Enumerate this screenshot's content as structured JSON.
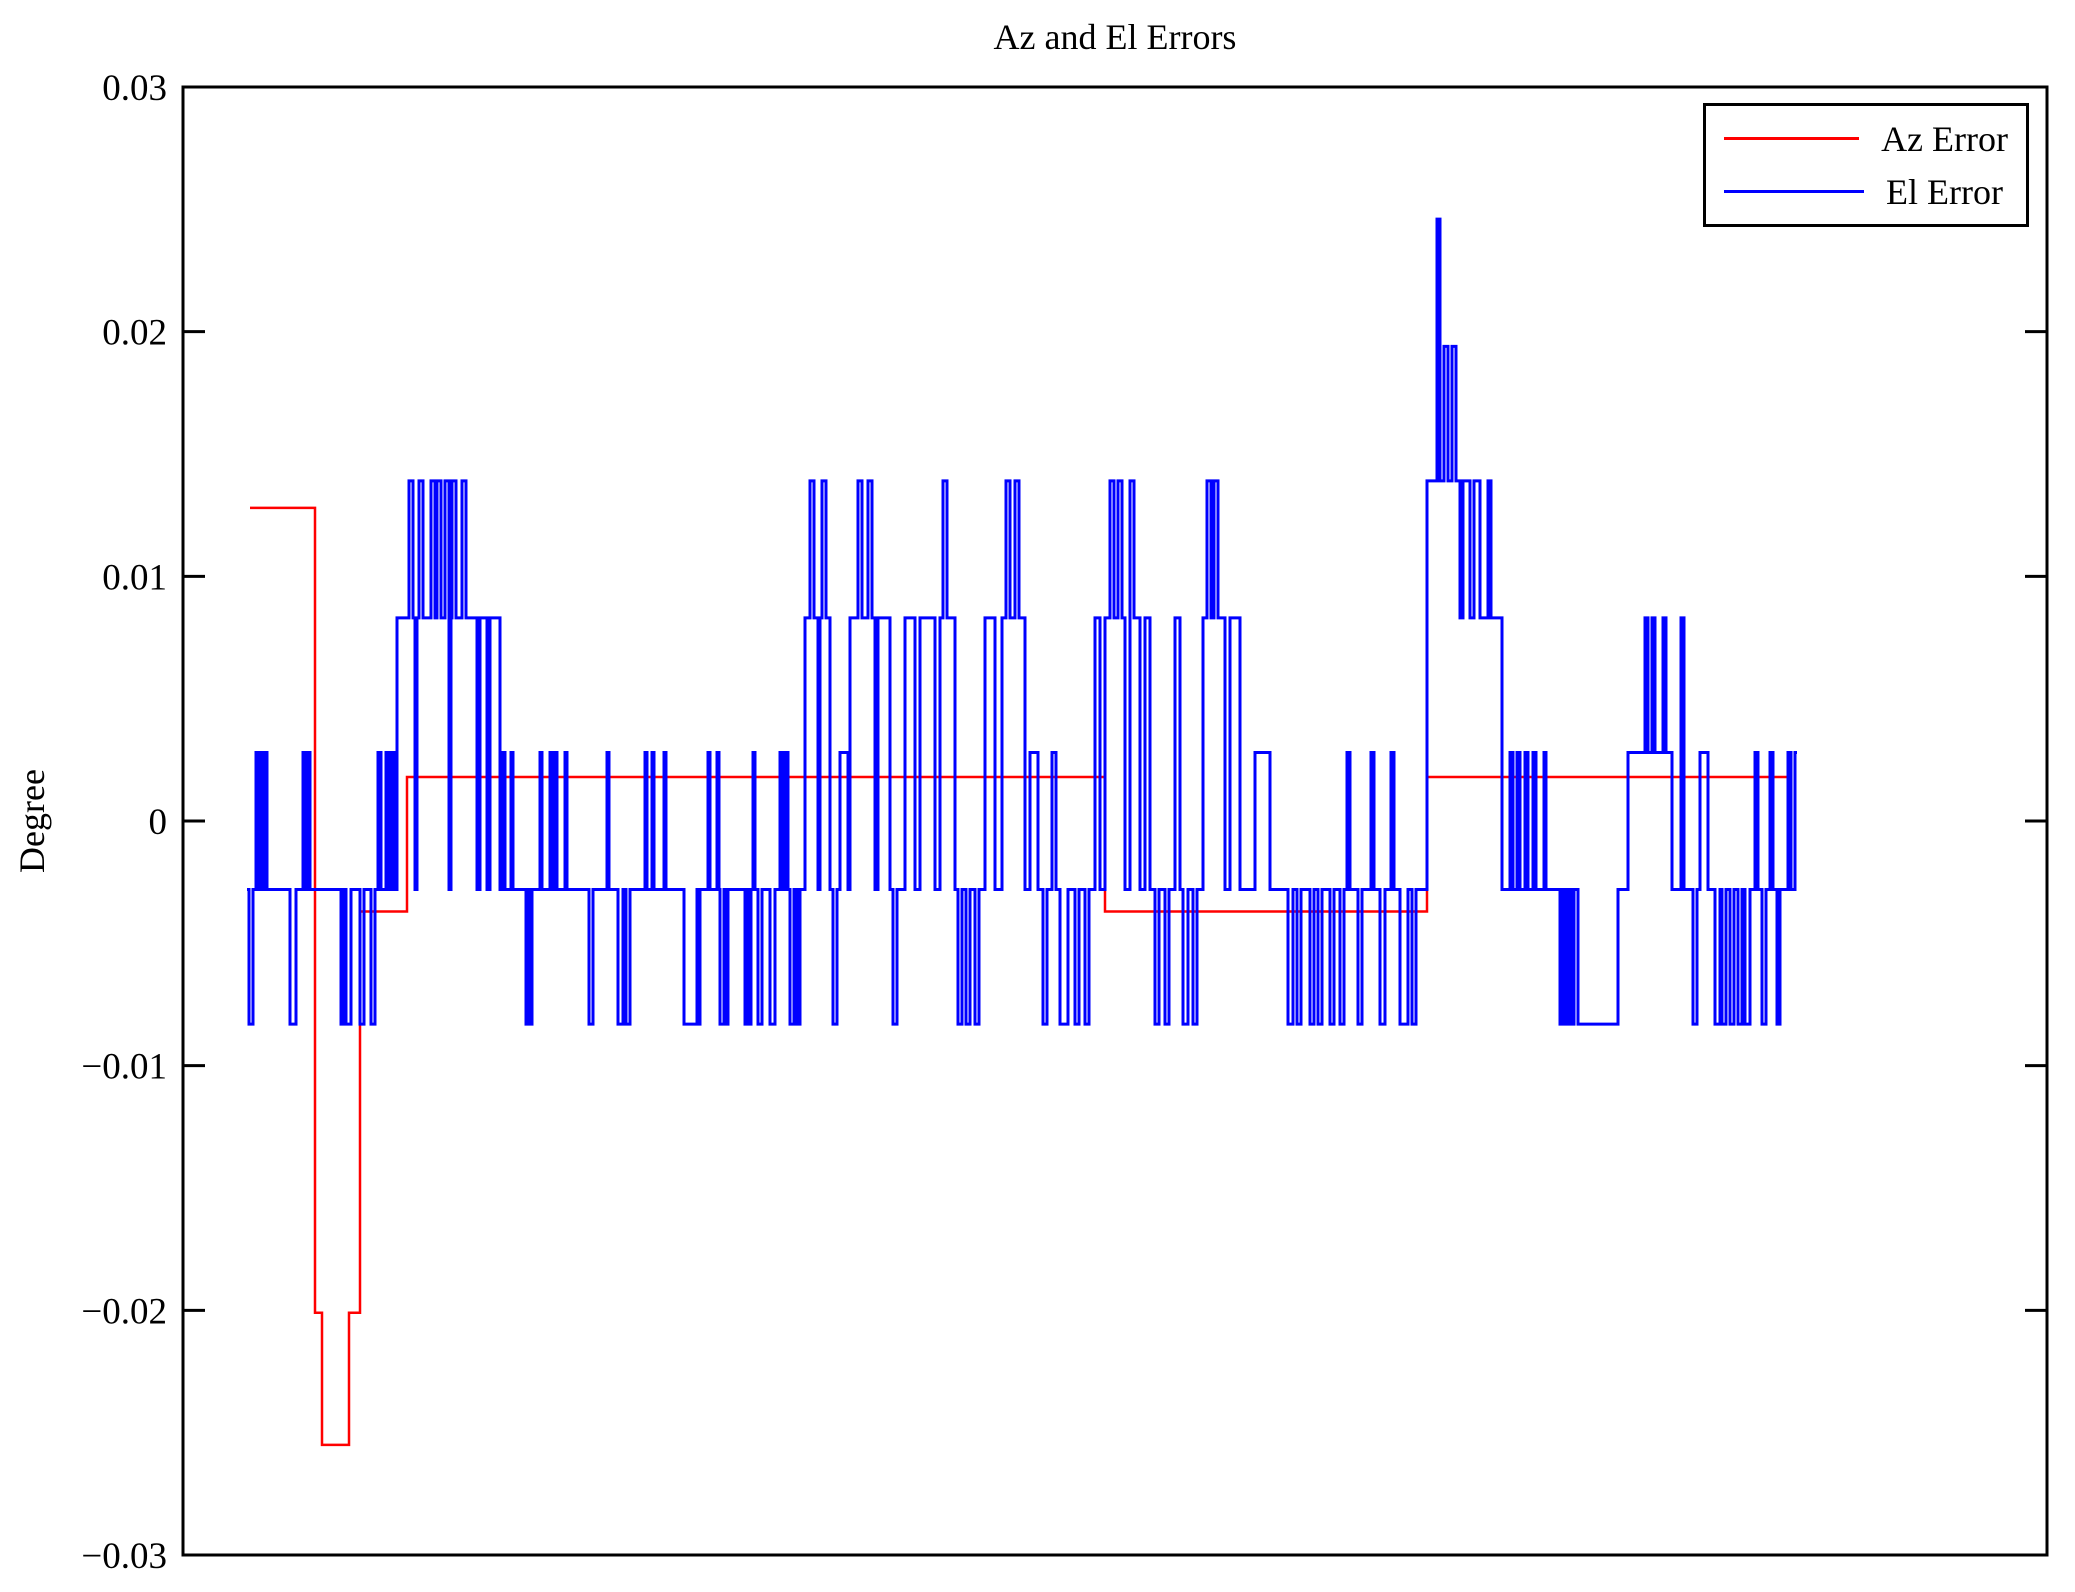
{
  "chart_data": {
    "type": "line",
    "subtype": "step",
    "title": "Az and El Errors",
    "xlabel": "",
    "ylabel": "Degree",
    "ylim": [
      -0.03,
      0.03
    ],
    "y_ticks": [
      0.03,
      0.02,
      0.01,
      0,
      -0.01,
      -0.02,
      -0.03
    ],
    "y_tick_labels": [
      "0.03",
      "0.02",
      "0.01",
      "0",
      "−0.01",
      "−0.02",
      "−0.03"
    ],
    "x_axis_labels_visible": false,
    "grid": false,
    "legend_position": "upper-right",
    "background_color": "#ffffff",
    "axis_color": "#000000",
    "legend": [
      {
        "label": "Az Error",
        "color": "#ff0000"
      },
      {
        "label": "El Error",
        "color": "#0000ff"
      }
    ],
    "series": [
      {
        "name": "Az Error",
        "color": "#ff0000",
        "width": 2.5,
        "steps": [
          [
            250,
            0.0128
          ],
          [
            315,
            -0.0201
          ],
          [
            322,
            -0.0255
          ],
          [
            349,
            -0.0201
          ],
          [
            360,
            -0.0037
          ],
          [
            407,
            0.0018
          ],
          [
            1105,
            -0.0037
          ],
          [
            1427,
            0.0018
          ],
          [
            1790,
            0.0018
          ]
        ]
      },
      {
        "name": "El Error",
        "color": "#0000ff",
        "width": 3,
        "steps": [
          [
            247,
            -0.0028
          ],
          [
            249,
            -0.0083
          ],
          [
            253,
            -0.0028
          ],
          [
            256,
            0.0028
          ],
          [
            258,
            -0.0028
          ],
          [
            260,
            0.0028
          ],
          [
            263,
            -0.0028
          ],
          [
            265,
            0.0028
          ],
          [
            267,
            -0.0028
          ],
          [
            290,
            -0.0083
          ],
          [
            296,
            -0.0028
          ],
          [
            303,
            0.0028
          ],
          [
            305,
            -0.0028
          ],
          [
            307,
            0.0028
          ],
          [
            310,
            -0.0028
          ],
          [
            341,
            -0.0083
          ],
          [
            344,
            -0.0028
          ],
          [
            346,
            -0.0083
          ],
          [
            351,
            -0.0028
          ],
          [
            360,
            -0.0083
          ],
          [
            364,
            -0.0028
          ],
          [
            371,
            -0.0083
          ],
          [
            375,
            -0.0028
          ],
          [
            378,
            0.0028
          ],
          [
            381,
            -0.0028
          ],
          [
            386,
            0.0028
          ],
          [
            389,
            -0.0028
          ],
          [
            392,
            0.0028
          ],
          [
            395,
            -0.0028
          ],
          [
            397,
            0.0083
          ],
          [
            409,
            0.0139
          ],
          [
            413,
            0.0083
          ],
          [
            415,
            -0.0028
          ],
          [
            417,
            0.0083
          ],
          [
            419,
            0.0139
          ],
          [
            423,
            0.0083
          ],
          [
            431,
            0.0139
          ],
          [
            435,
            0.0083
          ],
          [
            437,
            0.0139
          ],
          [
            441,
            0.0083
          ],
          [
            445,
            0.0139
          ],
          [
            449,
            -0.0028
          ],
          [
            451,
            0.0083
          ],
          [
            452,
            0.0139
          ],
          [
            456,
            0.0083
          ],
          [
            462,
            0.0139
          ],
          [
            466,
            0.0083
          ],
          [
            477,
            -0.0028
          ],
          [
            480,
            0.0083
          ],
          [
            487,
            -0.0028
          ],
          [
            490,
            0.0083
          ],
          [
            500,
            -0.0028
          ],
          [
            503,
            0.0028
          ],
          [
            505,
            -0.0028
          ],
          [
            511,
            0.0028
          ],
          [
            513,
            -0.0028
          ],
          [
            526,
            -0.0083
          ],
          [
            528,
            -0.0028
          ],
          [
            530,
            -0.0083
          ],
          [
            532,
            -0.0028
          ],
          [
            540,
            0.0028
          ],
          [
            542,
            -0.0028
          ],
          [
            550,
            0.0028
          ],
          [
            552,
            -0.0028
          ],
          [
            555,
            0.0028
          ],
          [
            557,
            -0.0028
          ],
          [
            565,
            0.0028
          ],
          [
            567,
            -0.0028
          ],
          [
            589,
            -0.0083
          ],
          [
            593,
            -0.0028
          ],
          [
            607,
            0.0028
          ],
          [
            609,
            -0.0028
          ],
          [
            618,
            -0.0083
          ],
          [
            623,
            -0.0028
          ],
          [
            626,
            -0.0083
          ],
          [
            630,
            -0.0028
          ],
          [
            645,
            0.0028
          ],
          [
            647,
            -0.0028
          ],
          [
            652,
            0.0028
          ],
          [
            654,
            -0.0028
          ],
          [
            664,
            0.0028
          ],
          [
            666,
            -0.0028
          ],
          [
            684,
            -0.0083
          ],
          [
            697,
            -0.0028
          ],
          [
            698,
            -0.0083
          ],
          [
            700,
            -0.0028
          ],
          [
            708,
            0.0028
          ],
          [
            710,
            -0.0028
          ],
          [
            717,
            0.0028
          ],
          [
            719,
            -0.0028
          ],
          [
            720,
            -0.0083
          ],
          [
            724,
            -0.0028
          ],
          [
            726,
            -0.0083
          ],
          [
            728,
            -0.0028
          ],
          [
            745,
            -0.0083
          ],
          [
            747,
            -0.0028
          ],
          [
            749,
            -0.0083
          ],
          [
            751,
            -0.0028
          ],
          [
            753,
            0.0028
          ],
          [
            755,
            -0.0028
          ],
          [
            758,
            -0.0083
          ],
          [
            762,
            -0.0028
          ],
          [
            770,
            -0.0083
          ],
          [
            775,
            -0.0028
          ],
          [
            780,
            0.0028
          ],
          [
            783,
            -0.0028
          ],
          [
            786,
            0.0028
          ],
          [
            788,
            -0.0028
          ],
          [
            790,
            -0.0083
          ],
          [
            794,
            -0.0028
          ],
          [
            797,
            -0.0083
          ],
          [
            800,
            -0.0028
          ],
          [
            805,
            0.0083
          ],
          [
            810,
            0.0139
          ],
          [
            814,
            0.0083
          ],
          [
            818,
            -0.0028
          ],
          [
            820,
            0.0083
          ],
          [
            822,
            0.0139
          ],
          [
            826,
            0.0083
          ],
          [
            830,
            -0.0028
          ],
          [
            833,
            -0.0083
          ],
          [
            837,
            -0.0028
          ],
          [
            840,
            0.0028
          ],
          [
            848,
            -0.0028
          ],
          [
            850,
            0.0083
          ],
          [
            858,
            0.0139
          ],
          [
            862,
            0.0083
          ],
          [
            868,
            0.0139
          ],
          [
            872,
            0.0083
          ],
          [
            875,
            -0.0028
          ],
          [
            878,
            0.0083
          ],
          [
            890,
            -0.0028
          ],
          [
            893,
            -0.0083
          ],
          [
            897,
            -0.0028
          ],
          [
            905,
            0.0083
          ],
          [
            915,
            -0.0028
          ],
          [
            920,
            0.0083
          ],
          [
            935,
            -0.0028
          ],
          [
            940,
            0.0083
          ],
          [
            943,
            0.0139
          ],
          [
            947,
            0.0083
          ],
          [
            955,
            -0.0028
          ],
          [
            958,
            -0.0083
          ],
          [
            962,
            -0.0028
          ],
          [
            966,
            -0.0083
          ],
          [
            970,
            -0.0028
          ],
          [
            975,
            -0.0083
          ],
          [
            979,
            -0.0028
          ],
          [
            985,
            0.0083
          ],
          [
            995,
            -0.0028
          ],
          [
            1002,
            0.0083
          ],
          [
            1006,
            0.0139
          ],
          [
            1010,
            0.0083
          ],
          [
            1015,
            0.0139
          ],
          [
            1019,
            0.0083
          ],
          [
            1025,
            -0.0028
          ],
          [
            1030,
            0.0028
          ],
          [
            1038,
            -0.0028
          ],
          [
            1043,
            -0.0083
          ],
          [
            1047,
            -0.0028
          ],
          [
            1052,
            0.0028
          ],
          [
            1056,
            -0.0028
          ],
          [
            1060,
            -0.0083
          ],
          [
            1068,
            -0.0028
          ],
          [
            1075,
            -0.0083
          ],
          [
            1079,
            -0.0028
          ],
          [
            1085,
            -0.0083
          ],
          [
            1089,
            -0.0028
          ],
          [
            1095,
            0.0083
          ],
          [
            1100,
            -0.0028
          ],
          [
            1105,
            0.0083
          ],
          [
            1110,
            0.0139
          ],
          [
            1114,
            0.0083
          ],
          [
            1118,
            0.0139
          ],
          [
            1122,
            0.0083
          ],
          [
            1125,
            -0.0028
          ],
          [
            1130,
            0.0139
          ],
          [
            1134,
            0.0083
          ],
          [
            1140,
            -0.0028
          ],
          [
            1145,
            0.0083
          ],
          [
            1150,
            -0.0028
          ],
          [
            1155,
            -0.0083
          ],
          [
            1159,
            -0.0028
          ],
          [
            1165,
            -0.0083
          ],
          [
            1169,
            -0.0028
          ],
          [
            1175,
            0.0083
          ],
          [
            1180,
            -0.0028
          ],
          [
            1183,
            -0.0083
          ],
          [
            1188,
            -0.0028
          ],
          [
            1193,
            -0.0083
          ],
          [
            1197,
            -0.0028
          ],
          [
            1203,
            0.0083
          ],
          [
            1207,
            0.0139
          ],
          [
            1211,
            0.0083
          ],
          [
            1214,
            0.0139
          ],
          [
            1218,
            0.0083
          ],
          [
            1225,
            -0.0028
          ],
          [
            1230,
            0.0083
          ],
          [
            1240,
            -0.0028
          ],
          [
            1255,
            0.0028
          ],
          [
            1270,
            -0.0028
          ],
          [
            1288,
            -0.0083
          ],
          [
            1293,
            -0.0028
          ],
          [
            1297,
            -0.0083
          ],
          [
            1301,
            -0.0028
          ],
          [
            1310,
            -0.0083
          ],
          [
            1314,
            -0.0028
          ],
          [
            1318,
            -0.0083
          ],
          [
            1322,
            -0.0028
          ],
          [
            1330,
            -0.0083
          ],
          [
            1334,
            -0.0028
          ],
          [
            1340,
            -0.0083
          ],
          [
            1344,
            -0.0028
          ],
          [
            1347,
            0.0028
          ],
          [
            1350,
            -0.0028
          ],
          [
            1358,
            -0.0083
          ],
          [
            1362,
            -0.0028
          ],
          [
            1371,
            0.0028
          ],
          [
            1374,
            -0.0028
          ],
          [
            1380,
            -0.0083
          ],
          [
            1385,
            -0.0028
          ],
          [
            1391,
            0.0028
          ],
          [
            1394,
            -0.0028
          ],
          [
            1400,
            -0.0083
          ],
          [
            1408,
            -0.0028
          ],
          [
            1412,
            -0.0083
          ],
          [
            1416,
            -0.0028
          ],
          [
            1427,
            0.0139
          ],
          [
            1437,
            0.0246
          ],
          [
            1440,
            0.0139
          ],
          [
            1444,
            0.0194
          ],
          [
            1448,
            0.0139
          ],
          [
            1452,
            0.0194
          ],
          [
            1456,
            0.0139
          ],
          [
            1460,
            0.0083
          ],
          [
            1463,
            0.0139
          ],
          [
            1470,
            0.0083
          ],
          [
            1474,
            0.0139
          ],
          [
            1480,
            0.0083
          ],
          [
            1488,
            0.0139
          ],
          [
            1491,
            0.0083
          ],
          [
            1502,
            -0.0028
          ],
          [
            1510,
            0.0028
          ],
          [
            1513,
            -0.0028
          ],
          [
            1517,
            0.0028
          ],
          [
            1520,
            -0.0028
          ],
          [
            1525,
            0.0028
          ],
          [
            1528,
            -0.0028
          ],
          [
            1533,
            0.0028
          ],
          [
            1536,
            -0.0028
          ],
          [
            1544,
            0.0028
          ],
          [
            1546,
            -0.0028
          ],
          [
            1560,
            -0.0083
          ],
          [
            1563,
            -0.0028
          ],
          [
            1566,
            -0.0083
          ],
          [
            1569,
            -0.0028
          ],
          [
            1571,
            -0.0083
          ],
          [
            1574,
            -0.0028
          ],
          [
            1578,
            -0.0083
          ],
          [
            1618,
            -0.0028
          ],
          [
            1628,
            0.0028
          ],
          [
            1645,
            0.0083
          ],
          [
            1648,
            0.0028
          ],
          [
            1652,
            0.0083
          ],
          [
            1655,
            0.0028
          ],
          [
            1663,
            0.0083
          ],
          [
            1666,
            0.0028
          ],
          [
            1672,
            -0.0028
          ],
          [
            1681,
            0.0083
          ],
          [
            1684,
            -0.0028
          ],
          [
            1693,
            -0.0083
          ],
          [
            1697,
            -0.0028
          ],
          [
            1700,
            0.0028
          ],
          [
            1708,
            -0.0028
          ],
          [
            1715,
            -0.0083
          ],
          [
            1720,
            -0.0028
          ],
          [
            1722,
            -0.0083
          ],
          [
            1726,
            -0.0028
          ],
          [
            1730,
            -0.0083
          ],
          [
            1734,
            -0.0028
          ],
          [
            1738,
            -0.0083
          ],
          [
            1742,
            -0.0028
          ],
          [
            1745,
            -0.0083
          ],
          [
            1750,
            -0.0028
          ],
          [
            1755,
            0.0028
          ],
          [
            1758,
            -0.0028
          ],
          [
            1762,
            -0.0083
          ],
          [
            1766,
            -0.0028
          ],
          [
            1770,
            0.0028
          ],
          [
            1773,
            -0.0028
          ],
          [
            1777,
            -0.0083
          ],
          [
            1780,
            -0.0028
          ],
          [
            1788,
            0.0028
          ],
          [
            1791,
            -0.0028
          ],
          [
            1795,
            0.0028
          ],
          [
            1797,
            0.0028
          ]
        ]
      }
    ]
  }
}
